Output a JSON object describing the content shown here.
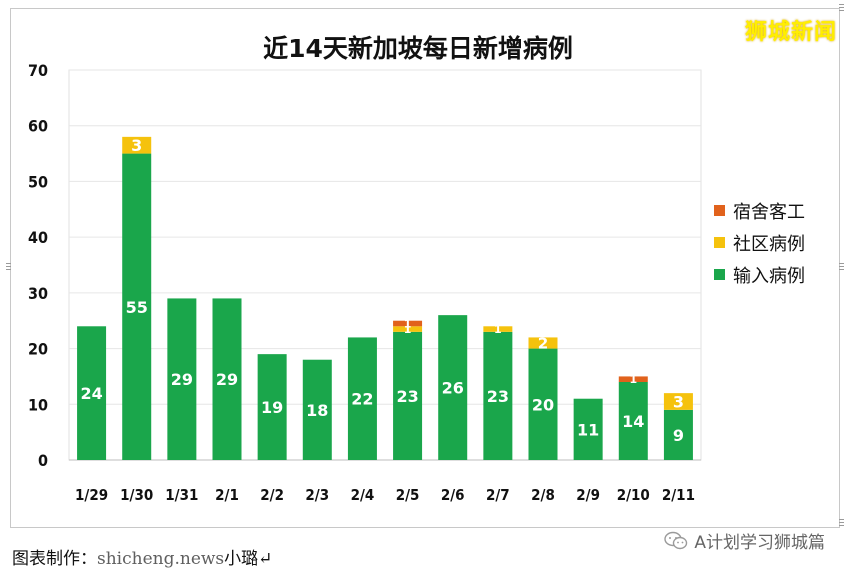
{
  "watermark": "狮城新闻",
  "caption": {
    "prefix": "图表制作：",
    "site": "shicheng.news",
    "suffix": "小璐↵"
  },
  "wechat_account": "A计划学习狮城篇",
  "colors": {
    "imported": "#1aa64b",
    "community": "#f5c20d",
    "dormitory": "#e1621c",
    "grid": "#e6e6e6",
    "title": "#111111"
  },
  "chart_data": {
    "type": "bar",
    "stacked": true,
    "title": "近14天新加坡每日新增病例",
    "xlabel": "",
    "ylabel": "",
    "ylim": [
      0,
      70
    ],
    "yticks": [
      0,
      10,
      20,
      30,
      40,
      50,
      60,
      70
    ],
    "grid": true,
    "legend_position": "right",
    "categories": [
      "1/29",
      "1/30",
      "1/31",
      "2/1",
      "2/2",
      "2/3",
      "2/4",
      "2/5",
      "2/6",
      "2/7",
      "2/8",
      "2/9",
      "2/10",
      "2/11"
    ],
    "series": [
      {
        "name": "输入病例",
        "key": "imported",
        "values": [
          24,
          55,
          29,
          29,
          19,
          18,
          22,
          23,
          26,
          23,
          20,
          11,
          14,
          9
        ]
      },
      {
        "name": "社区病例",
        "key": "community",
        "values": [
          0,
          3,
          0,
          0,
          0,
          0,
          0,
          1,
          0,
          1,
          2,
          0,
          0,
          3
        ]
      },
      {
        "name": "宿舍客工",
        "key": "dormitory",
        "values": [
          0,
          0,
          0,
          0,
          0,
          0,
          0,
          1,
          0,
          0,
          0,
          0,
          1,
          0
        ]
      }
    ],
    "legend_order": [
      "宿舍客工",
      "社区病例",
      "输入病例"
    ]
  }
}
